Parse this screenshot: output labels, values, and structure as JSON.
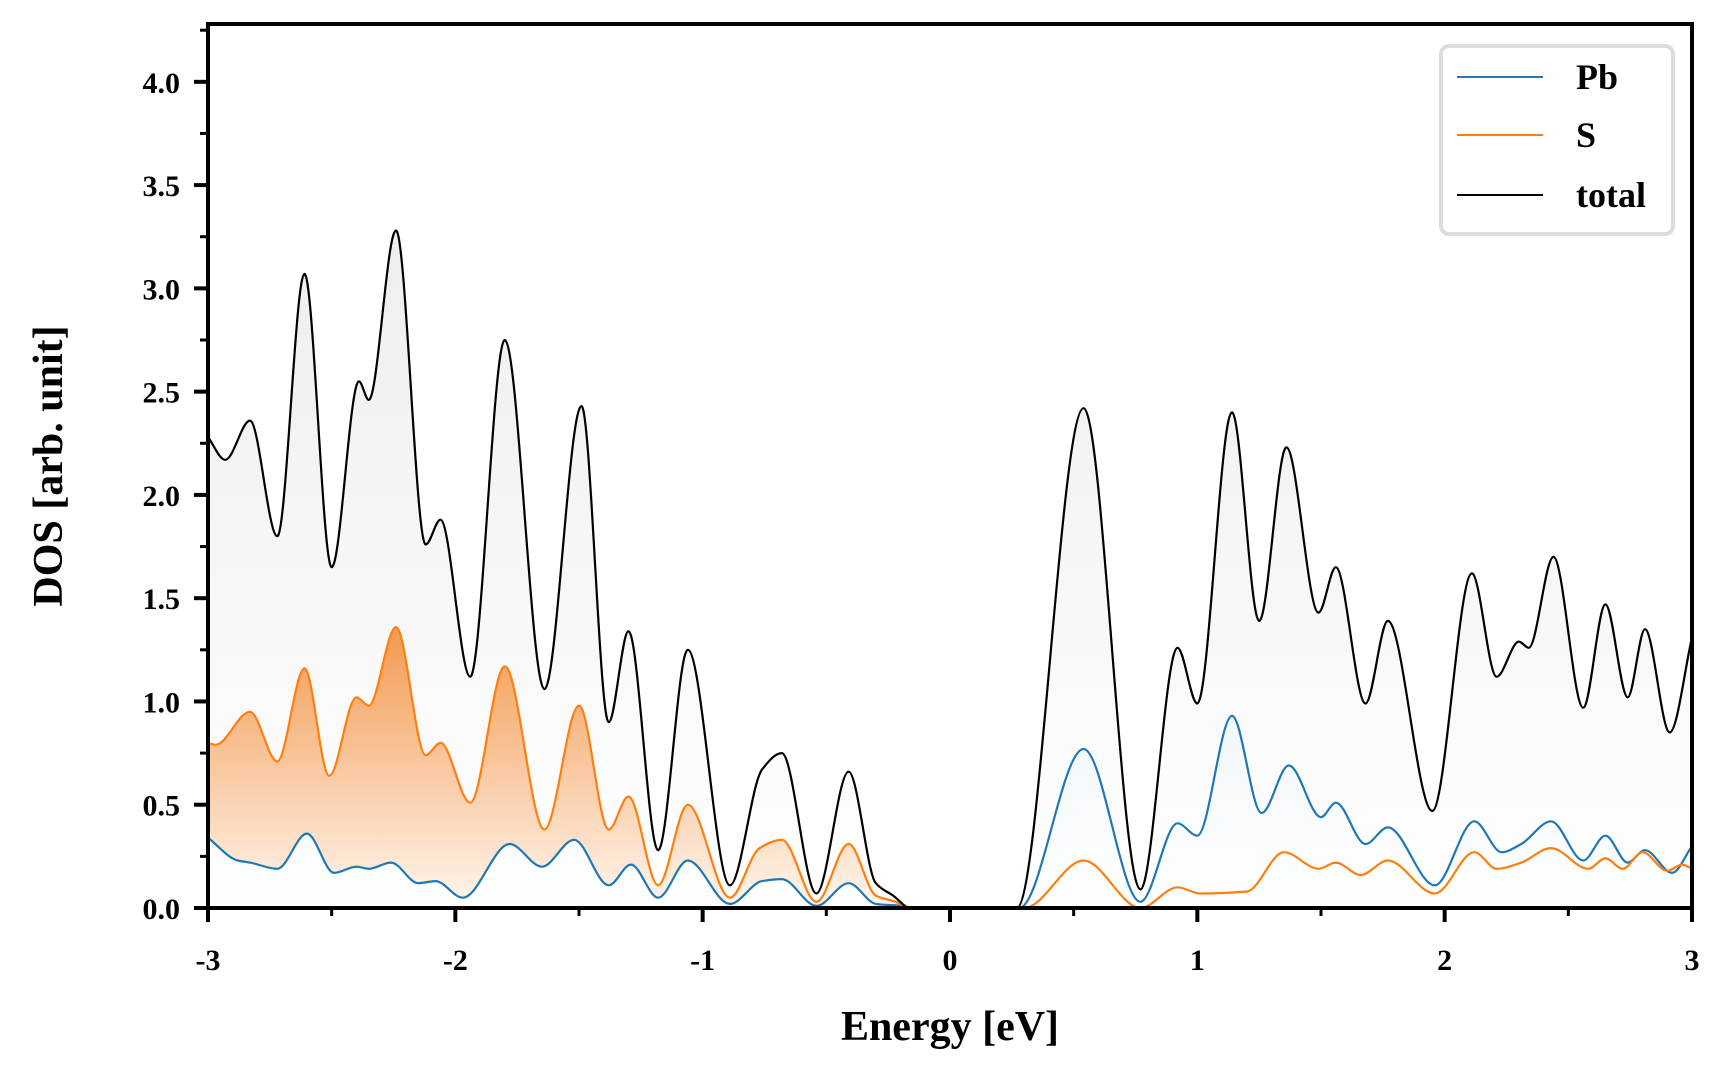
{
  "chart_data": {
    "type": "line",
    "title": "",
    "xlabel": "Energy [eV]",
    "ylabel": "DOS [arb. unit]",
    "xlim": [
      -3,
      3
    ],
    "ylim": [
      0,
      4.28
    ],
    "grid": false,
    "legend_position": "top-right",
    "x_ticks": [
      -3,
      -2,
      -1,
      0,
      1,
      2,
      3
    ],
    "x_tick_labels": [
      "-3",
      "-2",
      "-1",
      "0",
      "1",
      "2",
      "3"
    ],
    "x_minor_ticks": [
      -2.5,
      -1.5,
      -0.5,
      0.5,
      1.5,
      2.5
    ],
    "y_ticks": [
      0.0,
      0.5,
      1.0,
      1.5,
      2.0,
      2.5,
      3.0,
      3.5,
      4.0
    ],
    "y_tick_labels": [
      "0.0",
      "0.5",
      "1.0",
      "1.5",
      "2.0",
      "2.5",
      "3.0",
      "3.5",
      "4.0"
    ],
    "y_minor_ticks": [
      0.25,
      0.75,
      1.25,
      1.75,
      2.25,
      2.75,
      3.25,
      3.75,
      4.25
    ],
    "series": [
      {
        "name": "total",
        "color": "#000000",
        "fill": "#d8d8d8",
        "points": [
          [
            -3.0,
            2.28
          ],
          [
            -2.93,
            2.17
          ],
          [
            -2.83,
            2.36
          ],
          [
            -2.72,
            1.8
          ],
          [
            -2.61,
            3.07
          ],
          [
            -2.5,
            1.65
          ],
          [
            -2.39,
            2.55
          ],
          [
            -2.35,
            2.46
          ],
          [
            -2.24,
            3.28
          ],
          [
            -2.12,
            1.76
          ],
          [
            -2.06,
            1.88
          ],
          [
            -1.94,
            1.12
          ],
          [
            -1.8,
            2.75
          ],
          [
            -1.64,
            1.06
          ],
          [
            -1.49,
            2.43
          ],
          [
            -1.38,
            0.9
          ],
          [
            -1.3,
            1.34
          ],
          [
            -1.18,
            0.28
          ],
          [
            -1.06,
            1.25
          ],
          [
            -0.89,
            0.11
          ],
          [
            -0.76,
            0.67
          ],
          [
            -0.68,
            0.75
          ],
          [
            -0.54,
            0.07
          ],
          [
            -0.41,
            0.66
          ],
          [
            -0.3,
            0.12
          ],
          [
            -0.23,
            0.06
          ],
          [
            -0.16,
            0.0
          ],
          [
            0.0,
            0.0
          ],
          [
            0.27,
            0.0
          ],
          [
            0.54,
            2.42
          ],
          [
            0.77,
            0.09
          ],
          [
            0.92,
            1.26
          ],
          [
            1.0,
            0.99
          ],
          [
            1.14,
            2.4
          ],
          [
            1.25,
            1.39
          ],
          [
            1.36,
            2.23
          ],
          [
            1.49,
            1.43
          ],
          [
            1.56,
            1.65
          ],
          [
            1.68,
            0.99
          ],
          [
            1.77,
            1.39
          ],
          [
            1.95,
            0.47
          ],
          [
            2.11,
            1.62
          ],
          [
            2.21,
            1.12
          ],
          [
            2.3,
            1.29
          ],
          [
            2.34,
            1.26
          ],
          [
            2.44,
            1.7
          ],
          [
            2.56,
            0.97
          ],
          [
            2.65,
            1.47
          ],
          [
            2.74,
            1.02
          ],
          [
            2.81,
            1.35
          ],
          [
            2.91,
            0.85
          ],
          [
            3.0,
            1.31
          ]
        ]
      },
      {
        "name": "S",
        "color": "#ff7f0e",
        "fill": "#f39a4f",
        "points": [
          [
            -3.0,
            0.8
          ],
          [
            -2.97,
            0.79
          ],
          [
            -2.83,
            0.95
          ],
          [
            -2.72,
            0.71
          ],
          [
            -2.61,
            1.16
          ],
          [
            -2.51,
            0.64
          ],
          [
            -2.4,
            1.02
          ],
          [
            -2.35,
            0.98
          ],
          [
            -2.24,
            1.36
          ],
          [
            -2.12,
            0.74
          ],
          [
            -2.06,
            0.8
          ],
          [
            -1.94,
            0.51
          ],
          [
            -1.8,
            1.17
          ],
          [
            -1.64,
            0.38
          ],
          [
            -1.5,
            0.98
          ],
          [
            -1.38,
            0.38
          ],
          [
            -1.3,
            0.54
          ],
          [
            -1.18,
            0.11
          ],
          [
            -1.06,
            0.5
          ],
          [
            -0.89,
            0.05
          ],
          [
            -0.77,
            0.29
          ],
          [
            -0.68,
            0.33
          ],
          [
            -0.54,
            0.03
          ],
          [
            -0.41,
            0.31
          ],
          [
            -0.3,
            0.06
          ],
          [
            -0.22,
            0.03
          ],
          [
            -0.16,
            0.0
          ],
          [
            0.0,
            0.0
          ],
          [
            0.3,
            0.0
          ],
          [
            0.54,
            0.23
          ],
          [
            0.77,
            0.0
          ],
          [
            0.92,
            0.1
          ],
          [
            1.01,
            0.07
          ],
          [
            1.2,
            0.08
          ],
          [
            1.35,
            0.27
          ],
          [
            1.49,
            0.19
          ],
          [
            1.56,
            0.22
          ],
          [
            1.66,
            0.16
          ],
          [
            1.77,
            0.23
          ],
          [
            1.96,
            0.07
          ],
          [
            2.12,
            0.27
          ],
          [
            2.21,
            0.19
          ],
          [
            2.31,
            0.22
          ],
          [
            2.43,
            0.29
          ],
          [
            2.58,
            0.19
          ],
          [
            2.65,
            0.24
          ],
          [
            2.72,
            0.19
          ],
          [
            2.8,
            0.27
          ],
          [
            2.9,
            0.18
          ],
          [
            2.96,
            0.21
          ],
          [
            3.0,
            0.19
          ]
        ]
      },
      {
        "name": "Pb",
        "color": "#1f77b4",
        "fill": "#c6dbef",
        "points": [
          [
            -3.0,
            0.34
          ],
          [
            -2.88,
            0.23
          ],
          [
            -2.83,
            0.22
          ],
          [
            -2.72,
            0.19
          ],
          [
            -2.6,
            0.36
          ],
          [
            -2.49,
            0.17
          ],
          [
            -2.4,
            0.2
          ],
          [
            -2.35,
            0.19
          ],
          [
            -2.26,
            0.22
          ],
          [
            -2.15,
            0.12
          ],
          [
            -2.08,
            0.13
          ],
          [
            -1.97,
            0.05
          ],
          [
            -1.78,
            0.31
          ],
          [
            -1.65,
            0.2
          ],
          [
            -1.52,
            0.33
          ],
          [
            -1.38,
            0.11
          ],
          [
            -1.29,
            0.21
          ],
          [
            -1.18,
            0.05
          ],
          [
            -1.06,
            0.23
          ],
          [
            -0.89,
            0.02
          ],
          [
            -0.76,
            0.13
          ],
          [
            -0.68,
            0.14
          ],
          [
            -0.54,
            0.01
          ],
          [
            -0.41,
            0.12
          ],
          [
            -0.3,
            0.02
          ],
          [
            -0.2,
            0.01
          ],
          [
            -0.16,
            0.0
          ],
          [
            0.0,
            0.0
          ],
          [
            0.28,
            0.0
          ],
          [
            0.54,
            0.77
          ],
          [
            0.77,
            0.03
          ],
          [
            0.92,
            0.41
          ],
          [
            1.0,
            0.35
          ],
          [
            1.14,
            0.93
          ],
          [
            1.26,
            0.46
          ],
          [
            1.37,
            0.69
          ],
          [
            1.5,
            0.44
          ],
          [
            1.56,
            0.51
          ],
          [
            1.68,
            0.31
          ],
          [
            1.77,
            0.39
          ],
          [
            1.96,
            0.11
          ],
          [
            2.12,
            0.42
          ],
          [
            2.23,
            0.27
          ],
          [
            2.31,
            0.31
          ],
          [
            2.43,
            0.42
          ],
          [
            2.56,
            0.23
          ],
          [
            2.65,
            0.35
          ],
          [
            2.74,
            0.22
          ],
          [
            2.81,
            0.28
          ],
          [
            2.92,
            0.17
          ],
          [
            3.0,
            0.3
          ]
        ]
      }
    ],
    "legend": [
      {
        "label": "Pb",
        "color": "#1f77b4"
      },
      {
        "label": "S",
        "color": "#ff7f0e"
      },
      {
        "label": "total",
        "color": "#000000"
      }
    ]
  }
}
